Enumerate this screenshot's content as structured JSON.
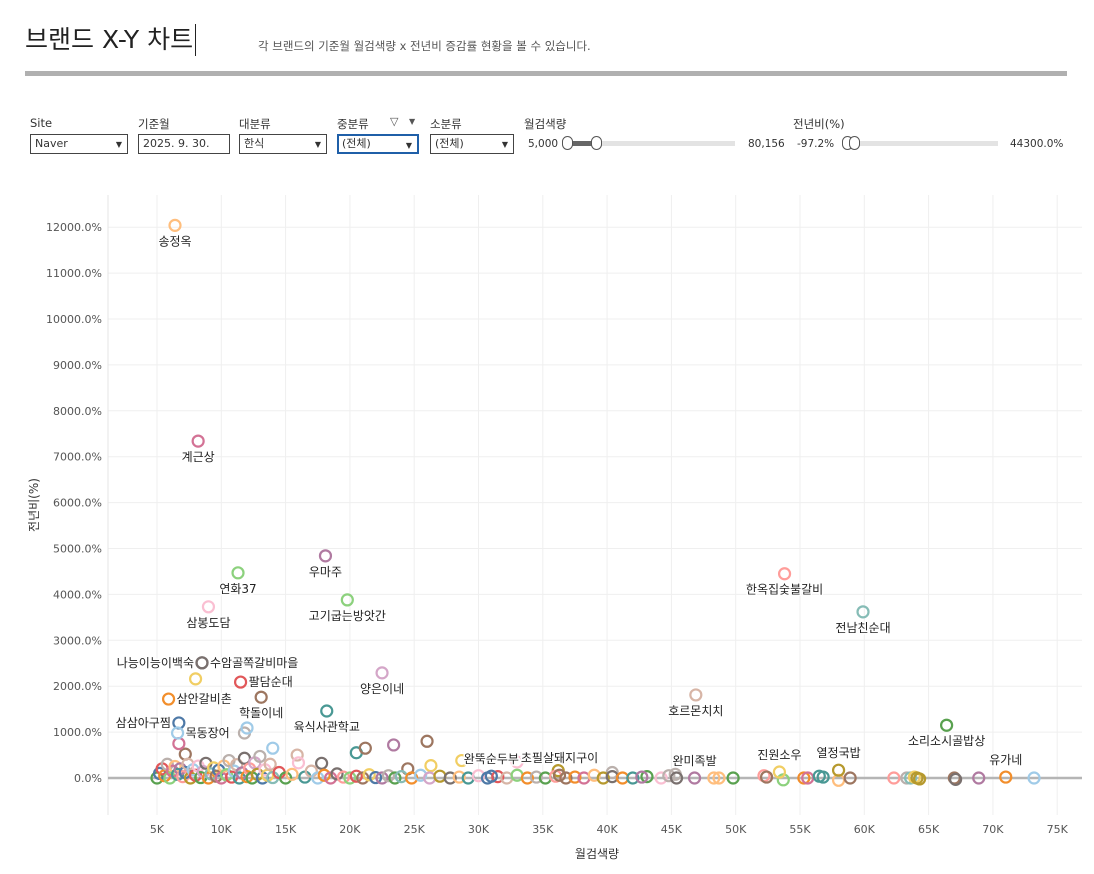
{
  "header": {
    "title": "브랜드 X-Y 차트",
    "subtitle": "각 브랜드의 기준월 월검색량 x 전년비 증감률 현황을 볼 수 있습니다."
  },
  "filters": {
    "site": {
      "label": "Site",
      "value": "Naver"
    },
    "month": {
      "label": "기준월",
      "value": "2025. 9. 30."
    },
    "major": {
      "label": "대분류",
      "value": "한식"
    },
    "middle": {
      "label": "중분류",
      "value": "(전체)",
      "icon": "filter-icon"
    },
    "minor": {
      "label": "소분류",
      "value": "(전체)"
    },
    "search_volume": {
      "label": "월검색량",
      "min": "5,000",
      "max": "80,156",
      "range_fraction": [
        0,
        0.18
      ]
    },
    "yoy": {
      "label": "전년비(%)",
      "min": "-97.2%",
      "max": "44300.0%",
      "range_fraction": [
        0,
        0.03
      ]
    }
  },
  "chart_data": {
    "type": "scatter",
    "xlabel": "월검색량",
    "ylabel": "전년비(%)",
    "xlim": [
      1200,
      77000
    ],
    "ylim": [
      -800,
      12700
    ],
    "x_ticks": [
      5000,
      10000,
      15000,
      20000,
      25000,
      30000,
      35000,
      40000,
      45000,
      50000,
      55000,
      60000,
      65000,
      70000,
      75000
    ],
    "x_tick_labels": [
      "5K",
      "10K",
      "15K",
      "20K",
      "25K",
      "30K",
      "35K",
      "40K",
      "45K",
      "50K",
      "55K",
      "60K",
      "65K",
      "70K",
      "75K"
    ],
    "y_ticks": [
      0,
      1000,
      2000,
      3000,
      4000,
      5000,
      6000,
      7000,
      8000,
      9000,
      10000,
      11000,
      12000
    ],
    "y_tick_labels": [
      "0.0%",
      "1000.0%",
      "2000.0%",
      "3000.0%",
      "4000.0%",
      "5000.0%",
      "6000.0%",
      "7000.0%",
      "8000.0%",
      "9000.0%",
      "10000.0%",
      "11000.0%",
      "12000.0%"
    ],
    "grid": true,
    "palette": [
      "#4e79a7",
      "#a0cbe8",
      "#f28e2b",
      "#ffbe7d",
      "#59a14f",
      "#8cd17d",
      "#b6992d",
      "#f1ce63",
      "#499894",
      "#86bcb6",
      "#e15759",
      "#ff9d9a",
      "#79706e",
      "#bab0ac",
      "#d37295",
      "#fabfd2",
      "#b07aa1",
      "#d4a6c8",
      "#9d7660",
      "#d7b5a6"
    ],
    "labeled_points": [
      {
        "name": "송정옥",
        "x": 6400,
        "y": 12040,
        "c": 3,
        "pos": "below"
      },
      {
        "name": "계근상",
        "x": 8200,
        "y": 7340,
        "c": 14,
        "pos": "below"
      },
      {
        "name": "연화37",
        "x": 11300,
        "y": 4470,
        "c": 5,
        "pos": "below"
      },
      {
        "name": "우마주",
        "x": 18100,
        "y": 4840,
        "c": 16,
        "pos": "below"
      },
      {
        "name": "삼봉도담",
        "x": 9000,
        "y": 3730,
        "c": 15,
        "pos": "below"
      },
      {
        "name": "고기굽는방앗간",
        "x": 19800,
        "y": 3880,
        "c": 5,
        "pos": "below"
      },
      {
        "name": "한옥집숯불갈비",
        "x": 53800,
        "y": 4450,
        "c": 11,
        "pos": "below"
      },
      {
        "name": "전남친순대",
        "x": 59900,
        "y": 3620,
        "c": 9,
        "pos": "below"
      },
      {
        "name": "나능이능이백숙",
        "x": 8500,
        "y": 2510,
        "c": 12,
        "pos": "left"
      },
      {
        "name": "수암골쪽갈비마을",
        "x": 8500,
        "y": 2510,
        "c": 12,
        "pos": "right"
      },
      {
        "name": "팔담순대",
        "x": 11500,
        "y": 2090,
        "c": 10,
        "pos": "right"
      },
      {
        "name": "양은이네",
        "x": 22500,
        "y": 2290,
        "c": 17,
        "pos": "below"
      },
      {
        "name": "삼안갈비촌",
        "x": 5900,
        "y": 1720,
        "c": 2,
        "pos": "right"
      },
      {
        "name": "학돌이네",
        "x": 13100,
        "y": 1760,
        "c": 18,
        "pos": "below"
      },
      {
        "name": "호르몬치치",
        "x": 46900,
        "y": 1810,
        "c": 19,
        "pos": "below"
      },
      {
        "name": "삼삼아구찜",
        "x": 6700,
        "y": 1200,
        "c": 0,
        "pos": "left"
      },
      {
        "name": "목동장어",
        "x": 6600,
        "y": 980,
        "c": 1,
        "pos": "right"
      },
      {
        "name": "육식사관학교",
        "x": 18200,
        "y": 1460,
        "c": 8,
        "pos": "below"
      },
      {
        "name": "소리소시골밥상",
        "x": 66400,
        "y": 1150,
        "c": 4,
        "pos": "below"
      },
      {
        "name": "완뚝순두부",
        "x": 31000,
        "y": 40,
        "c": 0,
        "pos": "above"
      },
      {
        "name": "초필살돼지구이",
        "x": 36300,
        "y": 60,
        "c": 18,
        "pos": "above"
      },
      {
        "name": "완미족발",
        "x": 46800,
        "y": 0,
        "c": 16,
        "pos": "above"
      },
      {
        "name": "진원소우",
        "x": 53400,
        "y": 130,
        "c": 7,
        "pos": "above"
      },
      {
        "name": "열정국밥",
        "x": 58000,
        "y": 170,
        "c": 6,
        "pos": "above"
      },
      {
        "name": "유가네",
        "x": 71000,
        "y": 20,
        "c": 2,
        "pos": "above"
      }
    ],
    "points": [
      [
        8000,
        2160,
        7
      ],
      [
        7200,
        520,
        18
      ],
      [
        6700,
        750,
        14
      ],
      [
        11800,
        980,
        13
      ],
      [
        12000,
        1090,
        1
      ],
      [
        14000,
        650,
        1
      ],
      [
        15900,
        500,
        19
      ],
      [
        17800,
        320,
        12
      ],
      [
        20500,
        550,
        8
      ],
      [
        21200,
        650,
        18
      ],
      [
        23400,
        720,
        16
      ],
      [
        26000,
        800,
        18
      ],
      [
        28700,
        380,
        7
      ],
      [
        33000,
        350,
        15
      ],
      [
        24500,
        200,
        18
      ],
      [
        26300,
        270,
        7
      ],
      [
        36200,
        160,
        6
      ],
      [
        40400,
        120,
        13
      ],
      [
        45300,
        80,
        13
      ],
      [
        43100,
        30,
        4
      ],
      [
        5000,
        0,
        4
      ],
      [
        5200,
        100,
        0
      ],
      [
        5400,
        200,
        10
      ],
      [
        5600,
        50,
        2
      ],
      [
        5800,
        300,
        13
      ],
      [
        6000,
        0,
        5
      ],
      [
        6200,
        150,
        14
      ],
      [
        6400,
        250,
        3
      ],
      [
        6600,
        80,
        8
      ],
      [
        6800,
        200,
        16
      ],
      [
        7000,
        30,
        11
      ],
      [
        7200,
        120,
        0
      ],
      [
        7400,
        300,
        19
      ],
      [
        7600,
        0,
        6
      ],
      [
        7800,
        180,
        1
      ],
      [
        8000,
        60,
        10
      ],
      [
        8200,
        260,
        15
      ],
      [
        8400,
        10,
        4
      ],
      [
        8600,
        140,
        17
      ],
      [
        8800,
        320,
        12
      ],
      [
        9000,
        0,
        2
      ],
      [
        9200,
        90,
        9
      ],
      [
        9400,
        220,
        7
      ],
      [
        9600,
        40,
        18
      ],
      [
        9800,
        170,
        0
      ],
      [
        10000,
        0,
        14
      ],
      [
        10200,
        260,
        3
      ],
      [
        10400,
        70,
        5
      ],
      [
        10600,
        380,
        13
      ],
      [
        10800,
        20,
        10
      ],
      [
        11000,
        150,
        1
      ],
      [
        11200,
        290,
        19
      ],
      [
        11400,
        0,
        8
      ],
      [
        11600,
        110,
        16
      ],
      [
        11800,
        430,
        12
      ],
      [
        12000,
        30,
        2
      ],
      [
        12200,
        200,
        11
      ],
      [
        12400,
        0,
        4
      ],
      [
        12600,
        330,
        17
      ],
      [
        12800,
        80,
        6
      ],
      [
        13000,
        470,
        13
      ],
      [
        13200,
        0,
        0
      ],
      [
        13400,
        180,
        15
      ],
      [
        13600,
        60,
        7
      ],
      [
        13800,
        300,
        19
      ],
      [
        14000,
        10,
        9
      ],
      [
        14500,
        120,
        10
      ],
      [
        15000,
        0,
        4
      ],
      [
        15500,
        80,
        3
      ],
      [
        16000,
        330,
        15
      ],
      [
        16500,
        20,
        8
      ],
      [
        17000,
        150,
        19
      ],
      [
        17500,
        0,
        1
      ],
      [
        18000,
        60,
        2
      ],
      [
        18500,
        0,
        14
      ],
      [
        19000,
        90,
        12
      ],
      [
        19500,
        20,
        11
      ],
      [
        20000,
        0,
        5
      ],
      [
        20500,
        40,
        10
      ],
      [
        21000,
        0,
        18
      ],
      [
        21500,
        70,
        7
      ],
      [
        22000,
        10,
        0
      ],
      [
        22500,
        0,
        16
      ],
      [
        23000,
        50,
        13
      ],
      [
        23500,
        0,
        4
      ],
      [
        24000,
        30,
        9
      ],
      [
        24800,
        0,
        2
      ],
      [
        25500,
        60,
        1
      ],
      [
        26200,
        0,
        17
      ],
      [
        27000,
        40,
        6
      ],
      [
        27800,
        0,
        12
      ],
      [
        28500,
        20,
        3
      ],
      [
        29200,
        0,
        8
      ],
      [
        30000,
        50,
        15
      ],
      [
        30700,
        0,
        0
      ],
      [
        31500,
        30,
        10
      ],
      [
        32200,
        0,
        19
      ],
      [
        33000,
        60,
        5
      ],
      [
        33800,
        0,
        2
      ],
      [
        34500,
        20,
        13
      ],
      [
        35200,
        0,
        4
      ],
      [
        36000,
        40,
        11
      ],
      [
        36800,
        0,
        18
      ],
      [
        37500,
        20,
        2
      ],
      [
        38200,
        0,
        14
      ],
      [
        39000,
        60,
        3
      ],
      [
        39700,
        0,
        6
      ],
      [
        40400,
        30,
        12
      ],
      [
        41200,
        0,
        2
      ],
      [
        42000,
        0,
        8
      ],
      [
        42700,
        20,
        16
      ],
      [
        44200,
        0,
        15
      ],
      [
        44800,
        50,
        13
      ],
      [
        45400,
        0,
        12
      ],
      [
        48300,
        0,
        3
      ],
      [
        48700,
        0,
        3
      ],
      [
        49800,
        0,
        4
      ],
      [
        52200,
        50,
        11
      ],
      [
        52400,
        20,
        18
      ],
      [
        53700,
        -40,
        5
      ],
      [
        55300,
        0,
        2
      ],
      [
        55600,
        0,
        14
      ],
      [
        56500,
        40,
        8
      ],
      [
        56800,
        20,
        8
      ],
      [
        58000,
        -50,
        3
      ],
      [
        58900,
        0,
        18
      ],
      [
        62300,
        0,
        11
      ],
      [
        63300,
        0,
        13
      ],
      [
        63600,
        0,
        9
      ],
      [
        63900,
        20,
        7
      ],
      [
        64100,
        0,
        6
      ],
      [
        64300,
        -20,
        6
      ],
      [
        67000,
        0,
        18
      ],
      [
        67100,
        -30,
        12
      ],
      [
        68900,
        0,
        16
      ],
      [
        73200,
        0,
        1
      ]
    ]
  }
}
